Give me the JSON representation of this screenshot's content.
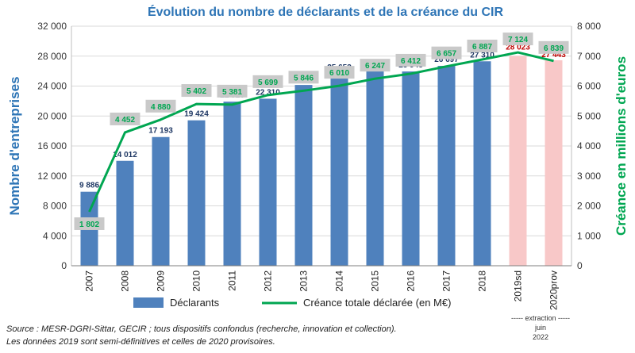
{
  "chart_data": {
    "type": "bar",
    "title": "Évolution du nombre de déclarants et de la créance du CIR",
    "categories": [
      "2007",
      "2008",
      "2009",
      "2010",
      "2011",
      "2012",
      "2013",
      "2014",
      "2015",
      "2016",
      "2017",
      "2018",
      "2019sd",
      "2020prov"
    ],
    "ylabel_left": "Nombre d'entreprises",
    "ylabel_right": "Créance en millions d'euros",
    "ylim_left": [
      0,
      32000
    ],
    "ylim_right": [
      0,
      8000
    ],
    "left_ticks": [
      "0",
      "4 000",
      "8 000",
      "12 000",
      "16 000",
      "20 000",
      "24 000",
      "28 000",
      "32 000"
    ],
    "right_ticks": [
      "0",
      "1 000",
      "2 000",
      "3 000",
      "4 000",
      "5 000",
      "6 000",
      "7 000",
      "8 000"
    ],
    "series": [
      {
        "name": "Déclarants",
        "axis": "left",
        "type": "bar",
        "values": [
          9886,
          14012,
          17193,
          19424,
          21916,
          22310,
          24148,
          25653,
          26329,
          25948,
          26697,
          27310,
          28023,
          27443
        ],
        "labels": [
          "9 886",
          "14 012",
          "17 193",
          "19 424",
          "21 916",
          "22 310",
          "24 148",
          "25 653",
          "26 329",
          "25 948",
          "26 697",
          "27 310",
          "28 023",
          "27 443"
        ]
      },
      {
        "name": "Créance totale déclarée (en M€)",
        "axis": "right",
        "type": "line",
        "values": [
          1802,
          4452,
          4880,
          5402,
          5381,
          5699,
          5846,
          6010,
          6247,
          6412,
          6657,
          6887,
          7124,
          6839
        ],
        "labels": [
          "1 802",
          "4 452",
          "4 880",
          "5 402",
          "5 381",
          "5 699",
          "5 846",
          "6 010",
          "6 247",
          "6 412",
          "6 657",
          "6 887",
          "7 124",
          "6 839"
        ]
      }
    ],
    "colors": {
      "bar": "#4f81bd",
      "bar_estimate": "#f8c8c8",
      "line": "#00a651",
      "label_box": "#c9c9c9",
      "title": "#2e75b6",
      "left_axis": "#2e75b6",
      "right_axis": "#00a651",
      "estimate_text": "#c00000",
      "bar_label": "#1f3864",
      "grid": "#d9d9d9"
    },
    "estimate_from_index": 12,
    "legend_position": "bottom",
    "grid": true,
    "annotation": [
      "----- extraction -----",
      "juin",
      "2022"
    ]
  },
  "source_lines": [
    "Source : MESR-DGRI-Sittar, GECIR ; tous dispositifs confondus (recherche, innovation et collection).",
    "Les données 2019 sont semi-définitives et celles de 2020 provisoires."
  ]
}
